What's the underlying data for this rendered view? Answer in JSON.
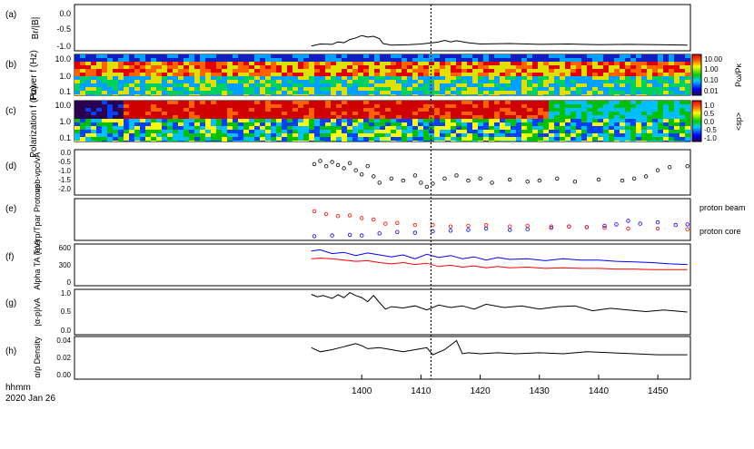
{
  "figure": {
    "time_unit_label": "hhmm",
    "date_label": "2020 Jan 26",
    "x_ticks": [
      "1400",
      "1410",
      "1420",
      "1430",
      "1440",
      "1450"
    ],
    "x_range": [
      1351.5,
      1455.5
    ],
    "event_time": 1411.7
  },
  "chart_data": [
    {
      "panel": "(a)",
      "type": "line",
      "ylabel": "Br/|B|",
      "y_ticks": [
        "0.0",
        "-0.5",
        "-1.0"
      ],
      "ylim": [
        -1.1,
        0.05
      ],
      "series": [
        {
          "color": "#000000",
          "x": [
            1391.5,
            1393,
            1395,
            1396,
            1397,
            1398,
            1399,
            1400,
            1401,
            1402,
            1403,
            1403.6,
            1405,
            1408,
            1410,
            1412,
            1413,
            1414,
            1415,
            1416,
            1418,
            1420,
            1425,
            1430,
            1435,
            1440,
            1445,
            1450,
            1455
          ],
          "values": [
            -0.98,
            -0.93,
            -0.94,
            -0.88,
            -0.9,
            -0.82,
            -0.78,
            -0.72,
            -0.76,
            -0.74,
            -0.8,
            -0.92,
            -0.96,
            -0.95,
            -0.93,
            -0.9,
            -0.88,
            -0.84,
            -0.88,
            -0.85,
            -0.9,
            -0.93,
            -0.92,
            -0.94,
            -0.93,
            -0.95,
            -0.94,
            -0.95,
            -0.96
          ]
        }
      ]
    },
    {
      "panel": "(b)",
      "type": "heatmap",
      "ylabel": "Power f (Hz)",
      "y_ticks": [
        "10.0",
        "1.0",
        "0.1"
      ],
      "yscale": "log",
      "colorbar": {
        "label": "Pω/Pκ",
        "ticks": [
          "10.00",
          "1.00",
          "0.10",
          "0.01"
        ]
      }
    },
    {
      "panel": "(c)",
      "type": "heatmap",
      "ylabel": "Polarization f (Hz)",
      "y_ticks": [
        "10.0",
        "1.0",
        "0.1"
      ],
      "yscale": "log",
      "colorbar": {
        "label": "<sp>",
        "ticks": [
          "1.0",
          "0.5",
          "0.0",
          "-0.5",
          "-1.0"
        ]
      }
    },
    {
      "panel": "(d)",
      "type": "scatter",
      "ylabel": "vpb-vpc/vA",
      "y_ticks": [
        "0.0",
        "-0.5",
        "-1.0",
        "-1.5",
        "-2.0"
      ],
      "ylim": [
        -2.1,
        0.1
      ],
      "series": [
        {
          "color": "#000000",
          "x": [
            1392,
            1393,
            1394,
            1395,
            1396,
            1397,
            1398,
            1399,
            1400,
            1401,
            1402,
            1403,
            1405,
            1407,
            1409,
            1410,
            1411,
            1412,
            1414,
            1416,
            1418,
            1420,
            1422,
            1425,
            1428,
            1430,
            1433,
            1436,
            1440,
            1444,
            1446,
            1448,
            1450,
            1452,
            1455
          ],
          "values": [
            -0.6,
            -0.45,
            -0.7,
            -0.5,
            -0.65,
            -0.8,
            -0.55,
            -0.9,
            -1.1,
            -0.7,
            -1.2,
            -1.5,
            -1.3,
            -1.4,
            -1.15,
            -1.5,
            -1.7,
            -1.55,
            -1.3,
            -1.15,
            -1.4,
            -1.3,
            -1.5,
            -1.35,
            -1.45,
            -1.4,
            -1.3,
            -1.45,
            -1.35,
            -1.4,
            -1.3,
            -1.2,
            -0.9,
            -0.75,
            -0.7
          ]
        }
      ]
    },
    {
      "panel": "(e)",
      "type": "scatter",
      "ylabel": "Tperp/Tpar Protons",
      "ylim": [
        0,
        6
      ],
      "series": [
        {
          "name": "proton beam",
          "color": "#0000ff",
          "x": [
            1392,
            1395,
            1398,
            1400,
            1403,
            1406,
            1409,
            1412,
            1415,
            1418,
            1421,
            1425,
            1428,
            1432,
            1435,
            1438,
            1441,
            1443,
            1445,
            1447,
            1450,
            1453,
            1455
          ],
          "values": [
            0.6,
            0.7,
            0.8,
            0.7,
            1.0,
            1.2,
            1.1,
            1.3,
            1.4,
            1.5,
            1.7,
            1.5,
            1.6,
            1.8,
            2.0,
            1.9,
            2.1,
            2.3,
            2.8,
            2.4,
            2.6,
            2.2,
            2.3
          ]
        },
        {
          "name": "proton core",
          "color": "#ff0000",
          "x": [
            1392,
            1394,
            1396,
            1398,
            1400,
            1402,
            1404,
            1406,
            1409,
            1412,
            1415,
            1418,
            1421,
            1425,
            1428,
            1432,
            1435,
            1438,
            1441,
            1445,
            1450,
            1455
          ],
          "values": [
            4.2,
            3.8,
            3.5,
            3.6,
            3.2,
            3.0,
            2.4,
            2.5,
            2.2,
            2.2,
            2.0,
            2.1,
            2.2,
            2.0,
            2.1,
            2.0,
            2.0,
            1.9,
            1.8,
            1.7,
            1.7,
            1.6
          ]
        }
      ]
    },
    {
      "panel": "(f)",
      "type": "line",
      "ylabel": "Alpha TA (eV)",
      "y_ticks": [
        "600",
        "300",
        "0"
      ],
      "ylim": [
        0,
        650
      ],
      "series": [
        {
          "color": "#0000ff",
          "x": [
            1391.5,
            1393,
            1395,
            1397,
            1399,
            1401,
            1403,
            1405,
            1407,
            1409,
            1411,
            1413,
            1415,
            1417,
            1419,
            1421,
            1423,
            1425,
            1428,
            1431,
            1434,
            1437,
            1440,
            1443,
            1446,
            1449,
            1452,
            1455
          ],
          "values": [
            540,
            560,
            500,
            520,
            470,
            510,
            480,
            450,
            480,
            420,
            490,
            440,
            470,
            420,
            450,
            400,
            440,
            410,
            420,
            390,
            420,
            400,
            400,
            380,
            370,
            360,
            340,
            330
          ]
        },
        {
          "color": "#ff0000",
          "x": [
            1391.5,
            1393,
            1395,
            1397,
            1399,
            1401,
            1403,
            1405,
            1407,
            1409,
            1411,
            1413,
            1415,
            1417,
            1419,
            1421,
            1423,
            1425,
            1428,
            1431,
            1434,
            1437,
            1440,
            1443,
            1446,
            1449,
            1452,
            1455
          ],
          "values": [
            420,
            430,
            420,
            400,
            380,
            390,
            360,
            340,
            360,
            330,
            350,
            300,
            320,
            290,
            310,
            280,
            300,
            280,
            290,
            270,
            280,
            270,
            270,
            260,
            260,
            250,
            250,
            250
          ]
        }
      ]
    },
    {
      "panel": "(g)",
      "type": "line",
      "ylabel": "|α-p|/vA",
      "y_ticks": [
        "1.0",
        "0.5",
        "0.0"
      ],
      "ylim": [
        0,
        1.1
      ],
      "series": [
        {
          "color": "#000000",
          "x": [
            1391.5,
            1392.5,
            1393.5,
            1395,
            1396,
            1397,
            1398,
            1399,
            1400,
            1401,
            1402,
            1403,
            1404,
            1405,
            1407,
            1409,
            1411,
            1413,
            1415,
            1417,
            1419,
            1421,
            1424,
            1427,
            1430,
            1433,
            1436,
            1439,
            1442,
            1445,
            1448,
            1451,
            1455
          ],
          "values": [
            0.98,
            0.92,
            0.95,
            0.88,
            0.97,
            0.9,
            1.02,
            0.95,
            0.9,
            0.8,
            0.95,
            0.78,
            0.62,
            0.68,
            0.65,
            0.7,
            0.6,
            0.72,
            0.66,
            0.7,
            0.62,
            0.74,
            0.66,
            0.7,
            0.62,
            0.68,
            0.7,
            0.58,
            0.64,
            0.6,
            0.56,
            0.6,
            0.55
          ]
        }
      ]
    },
    {
      "panel": "(h)",
      "type": "line",
      "ylabel": "α/p Density",
      "y_ticks": [
        "0.04",
        "0.02",
        "0.00"
      ],
      "ylim": [
        0,
        0.042
      ],
      "series": [
        {
          "color": "#000000",
          "x": [
            1391.5,
            1393,
            1395,
            1397,
            1399,
            1400,
            1401,
            1403,
            1405,
            1407,
            1409,
            1411,
            1412,
            1414,
            1416,
            1417,
            1418,
            1420,
            1423,
            1426,
            1430,
            1434,
            1438,
            1442,
            1446,
            1450,
            1455
          ],
          "values": [
            0.031,
            0.027,
            0.029,
            0.032,
            0.035,
            0.033,
            0.03,
            0.031,
            0.029,
            0.027,
            0.029,
            0.031,
            0.024,
            0.029,
            0.038,
            0.025,
            0.026,
            0.025,
            0.026,
            0.025,
            0.026,
            0.025,
            0.027,
            0.026,
            0.025,
            0.024,
            0.024
          ]
        }
      ]
    }
  ],
  "legend": {
    "beam_label": "proton beam",
    "core_label": "proton core",
    "beam_color": "#0000ff",
    "core_color": "#ff0000"
  }
}
